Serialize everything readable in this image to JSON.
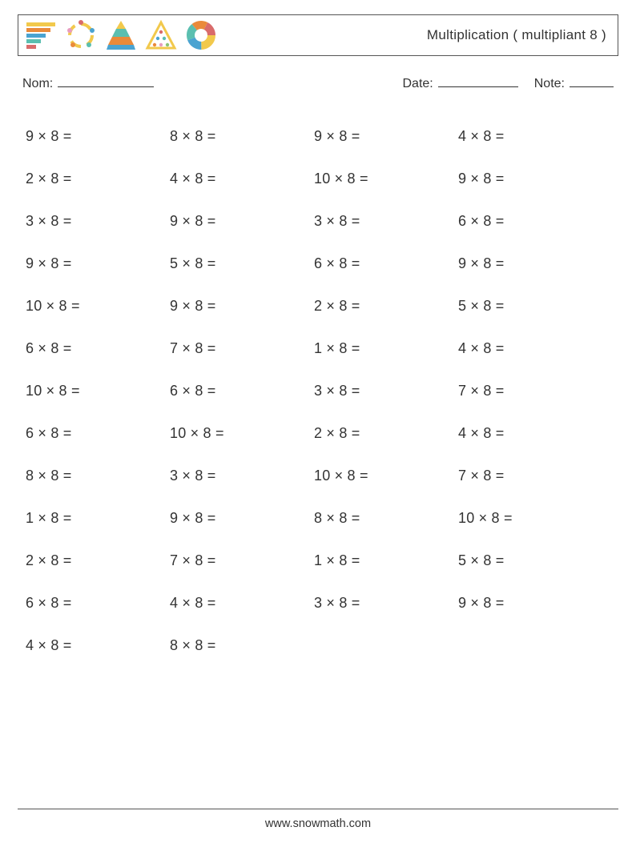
{
  "header": {
    "title": "Multiplication ( multipliant 8 )"
  },
  "info": {
    "nom_label": "Nom:",
    "date_label": "Date:",
    "note_label": "Note:"
  },
  "worksheet": {
    "type": "table",
    "operator": "×",
    "multiplicand": 8,
    "suffix": " =",
    "columns": 4,
    "rows": 13,
    "font_size_pt": 18,
    "text_color": "#333333",
    "multipliers": [
      [
        9,
        8,
        9,
        4
      ],
      [
        2,
        4,
        10,
        9
      ],
      [
        3,
        9,
        3,
        6
      ],
      [
        9,
        5,
        6,
        9
      ],
      [
        10,
        9,
        2,
        5
      ],
      [
        6,
        7,
        1,
        4
      ],
      [
        10,
        6,
        3,
        7
      ],
      [
        6,
        10,
        2,
        4
      ],
      [
        8,
        3,
        10,
        7
      ],
      [
        1,
        9,
        8,
        10
      ],
      [
        2,
        7,
        1,
        5
      ],
      [
        6,
        4,
        3,
        9
      ],
      [
        4,
        8,
        null,
        null
      ]
    ]
  },
  "footer": {
    "url": "www.snowmath.com"
  },
  "logo_colors": {
    "yellow": "#f2c94c",
    "orange": "#ea8a3a",
    "blue": "#4aa3d1",
    "teal": "#5bbfb0",
    "red": "#d96b6b",
    "pink": "#e89cc0",
    "green": "#8bc474"
  }
}
